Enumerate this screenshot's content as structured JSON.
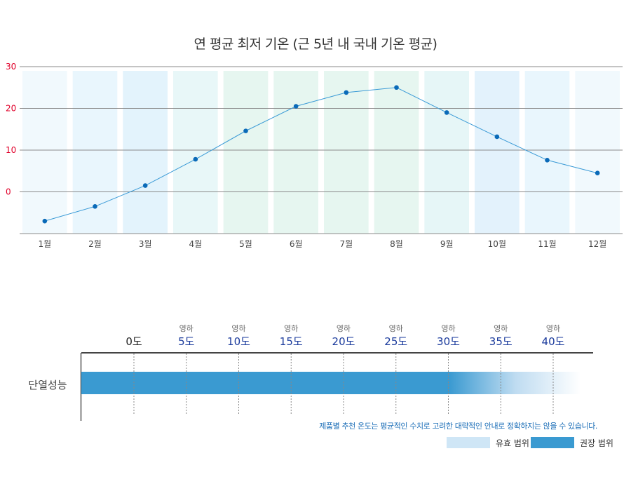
{
  "colors": {
    "line": "#3a9ad6",
    "point": "#0a6ab8",
    "recommended": "#3a9ad1",
    "effective": "#cfe6f6",
    "y_tick": "#e0002a",
    "scale_value": "#1a3a9c"
  },
  "chart_data": {
    "type": "line",
    "title": "연 평균 최저 기온 (근 5년 내 국내 기온 평균)",
    "xlabel": "",
    "ylabel": "",
    "ylim": [
      -10,
      30
    ],
    "yticks": [
      30,
      20,
      10,
      0
    ],
    "grid": true,
    "categories": [
      "1월",
      "2월",
      "3월",
      "4월",
      "5월",
      "6월",
      "7월",
      "8월",
      "9월",
      "10월",
      "11월",
      "12월"
    ],
    "values": [
      -7.0,
      -3.5,
      1.5,
      7.8,
      14.6,
      20.5,
      23.8,
      25.0,
      19.0,
      13.2,
      7.6,
      4.5
    ],
    "band_colors": [
      "#f1f9fd",
      "#e9f6fd",
      "#e3f3fc",
      "#e8f7f8",
      "#e6f6f0",
      "#e6f6f0",
      "#e6f6f0",
      "#e6f6f0",
      "#e6f6f7",
      "#e3f2fc",
      "#e9f6fd",
      "#f1f9fd"
    ]
  },
  "scale": {
    "row_label": "단열성능",
    "ticks": [
      {
        "sub": "",
        "main": "0도"
      },
      {
        "sub": "영하",
        "main": "5도"
      },
      {
        "sub": "영하",
        "main": "10도"
      },
      {
        "sub": "영하",
        "main": "15도"
      },
      {
        "sub": "영하",
        "main": "20도"
      },
      {
        "sub": "영하",
        "main": "25도"
      },
      {
        "sub": "영하",
        "main": "30도"
      },
      {
        "sub": "영하",
        "main": "35도"
      },
      {
        "sub": "영하",
        "main": "40도"
      }
    ],
    "note": "제품별 추천 온도는 평균적인 수치로 고려한 대략적인 안내로 정확하지는 않을 수 있습니다.",
    "legend": [
      {
        "label": "유효 범위",
        "color": "#cfe6f6"
      },
      {
        "label": "권장 범위",
        "color": "#3a9ad1"
      }
    ]
  }
}
